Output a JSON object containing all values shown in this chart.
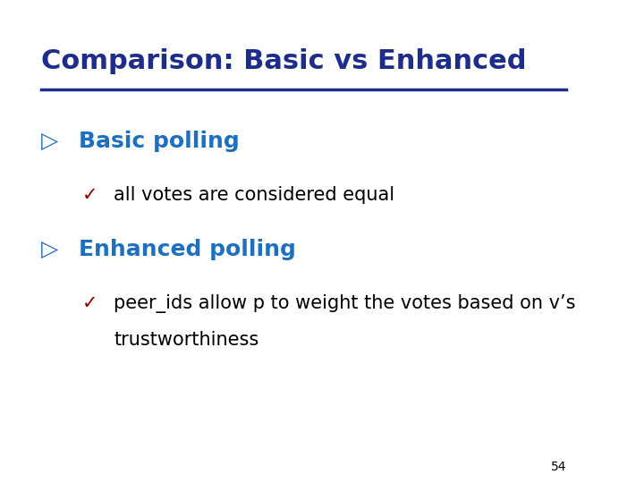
{
  "title": "Comparison: Basic vs Enhanced",
  "title_color": "#1F2D8A",
  "title_fontsize": 22,
  "line_color": "#1F2D8A",
  "background_color": "#FFFFFF",
  "bullet1_text": "Basic polling",
  "bullet1_color": "#1F6FBF",
  "bullet1_fontsize": 18,
  "sub1_text": "all votes are considered equal",
  "sub1_color": "#000000",
  "sub1_fontsize": 15,
  "sub1_check_color": "#8B0000",
  "bullet2_text": "Enhanced polling",
  "bullet2_color": "#1F6FBF",
  "bullet2_fontsize": 18,
  "sub2_line1": "peer_ids allow p to weight the votes based on v’s",
  "sub2_line2": "trustworthiness",
  "sub2_color": "#000000",
  "sub2_fontsize": 15,
  "sub2_check_color": "#8B0000",
  "page_number": "54",
  "page_number_color": "#000000",
  "page_number_fontsize": 10
}
